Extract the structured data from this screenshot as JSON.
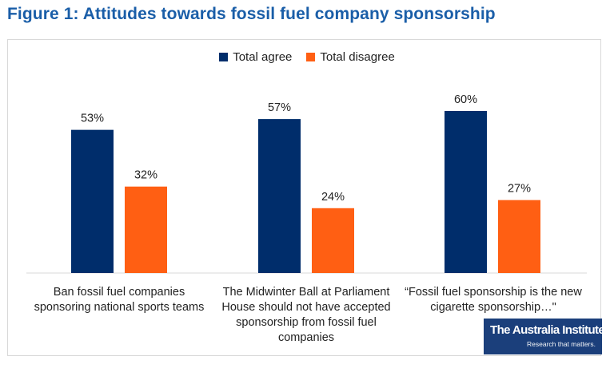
{
  "figure_title": "Figure 1: Attitudes towards fossil fuel company sponsorship",
  "logo": {
    "name": "The Australia Institute",
    "tagline": "Research that matters."
  },
  "chart_data": {
    "type": "bar",
    "categories": [
      "Ban fossil fuel companies sponsoring national sports teams",
      "The Midwinter Ball at Parliament House should not have accepted sponsorship from fossil fuel companies",
      "“Fossil fuel sponsorship is the new cigarette sponsorship…\""
    ],
    "series": [
      {
        "name": "Total agree",
        "values": [
          53,
          57,
          60
        ],
        "labels": [
          "53%",
          "57%",
          "60%"
        ],
        "color": "#002d6b"
      },
      {
        "name": "Total disagree",
        "values": [
          32,
          24,
          27
        ],
        "labels": [
          "32%",
          "24%",
          "27%"
        ],
        "color": "#ff5f13"
      }
    ],
    "ylim": [
      0,
      70
    ],
    "grid": false,
    "legend_position": "top-center",
    "data_labels": true
  }
}
